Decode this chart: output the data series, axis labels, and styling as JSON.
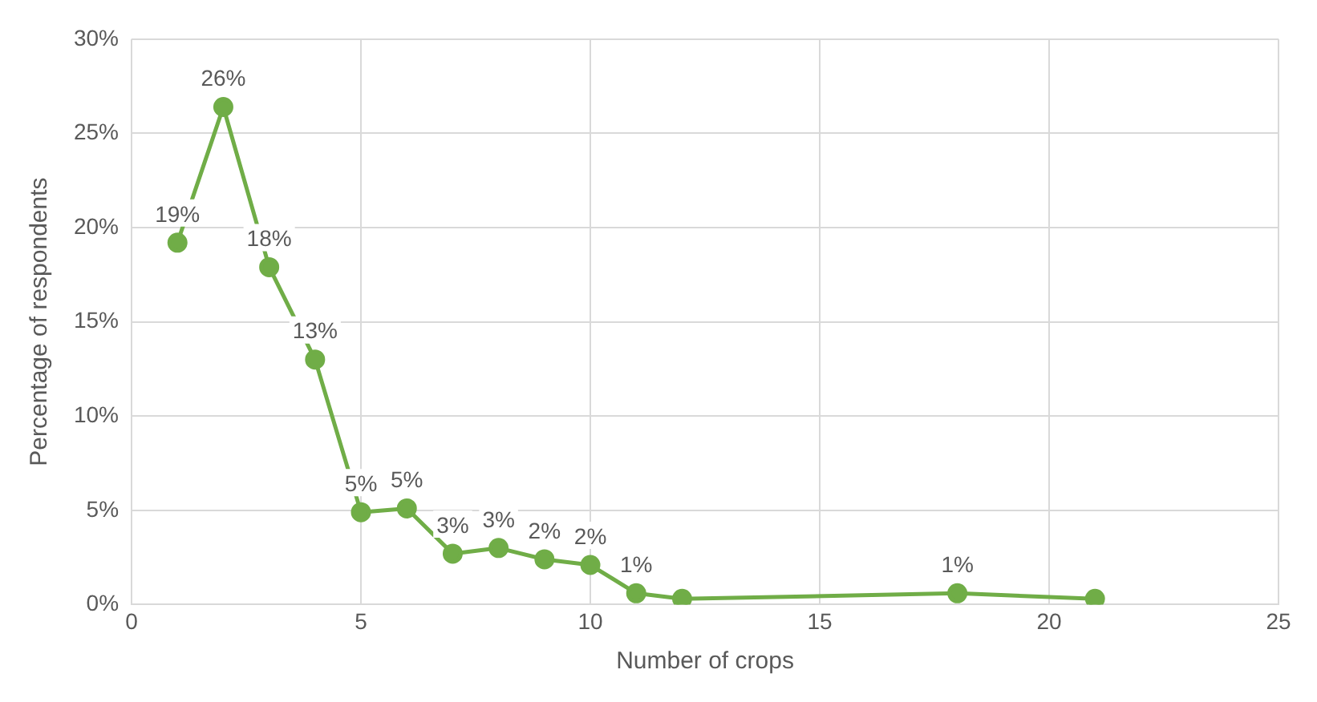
{
  "chart_data": {
    "type": "line",
    "xlabel": "Number of crops",
    "ylabel": "Percentage of respondents",
    "x": [
      1,
      2,
      3,
      4,
      5,
      6,
      7,
      8,
      9,
      10,
      11,
      12,
      18,
      21
    ],
    "series": [
      {
        "color": "#70ad47",
        "values": [
          19.2,
          26.4,
          17.9,
          13.0,
          4.9,
          5.1,
          2.7,
          3.0,
          2.4,
          2.1,
          0.6,
          0.3,
          0.6,
          0.3
        ],
        "value_labels": [
          "19%",
          "26%",
          "18%",
          "13%",
          "5%",
          "5%",
          "3%",
          "3%",
          "2%",
          "2%",
          "1%",
          null,
          "1%",
          null
        ]
      }
    ],
    "xlim": [
      0,
      25
    ],
    "xticks": [
      0,
      5,
      10,
      15,
      20,
      25
    ],
    "ylim": [
      0,
      30
    ],
    "yticks": [
      {
        "value": 0,
        "label": "0%"
      },
      {
        "value": 5,
        "label": "5%"
      },
      {
        "value": 10,
        "label": "10%"
      },
      {
        "value": 15,
        "label": "15%"
      },
      {
        "value": 20,
        "label": "20%"
      },
      {
        "value": 25,
        "label": "25%"
      },
      {
        "value": 30,
        "label": "30%"
      }
    ],
    "grid": true,
    "marker": "circle",
    "line_style": "solid",
    "legend": false
  }
}
